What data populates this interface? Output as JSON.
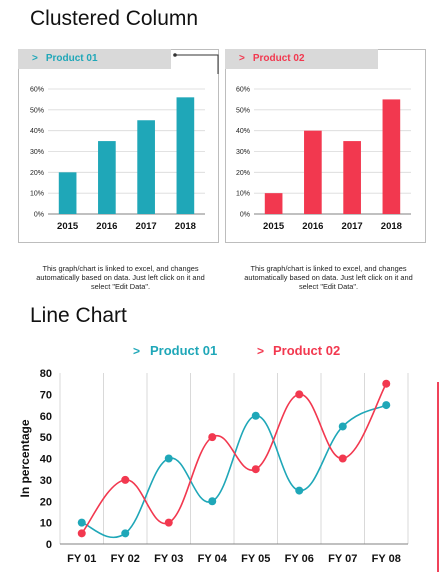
{
  "colors": {
    "product01": "#1fa7b8",
    "product02": "#f2384f",
    "grid": "#d9d9d9",
    "axis": "#808080"
  },
  "section1": {
    "title": "Clustered Column"
  },
  "section2": {
    "title": "Line Chart"
  },
  "left_panel": {
    "tab_chevron": ">",
    "tab_label": "Product 01",
    "note": "This graph/chart is linked to excel, and changes automatically based on data. Just left click on it and select \"Edit Data\"."
  },
  "right_panel": {
    "tab_chevron": ">",
    "tab_label": "Product 02",
    "note": "This graph/chart is linked to excel, and changes automatically based on data. Just left click on it and select \"Edit Data\"."
  },
  "line_legend": {
    "p1_chevron": ">",
    "p1_label": "Product 01",
    "p2_chevron": ">",
    "p2_label": "Product 02"
  },
  "chart_data": [
    {
      "type": "bar",
      "categories": [
        "2015",
        "2016",
        "2017",
        "2018"
      ],
      "values": [
        20,
        35,
        45,
        56
      ],
      "yticks": [
        "0%",
        "10%",
        "20%",
        "30%",
        "40%",
        "50%",
        "60%"
      ],
      "ylim": [
        0,
        60
      ],
      "grid": true
    },
    {
      "type": "bar",
      "categories": [
        "2015",
        "2016",
        "2017",
        "2018"
      ],
      "values": [
        10,
        40,
        35,
        55
      ],
      "yticks": [
        "0%",
        "10%",
        "20%",
        "30%",
        "40%",
        "50%",
        "60%"
      ],
      "ylim": [
        0,
        60
      ],
      "grid": true
    },
    {
      "type": "line",
      "smooth": true,
      "categories": [
        "FY 01",
        "FY 02",
        "FY 03",
        "FY 04",
        "FY 05",
        "FY 06",
        "FY 07",
        "FY 08"
      ],
      "series": [
        {
          "name": "Product 01",
          "values": [
            10,
            5,
            40,
            20,
            60,
            25,
            55,
            65
          ]
        },
        {
          "name": "Product 02",
          "values": [
            5,
            30,
            10,
            50,
            35,
            70,
            40,
            75
          ]
        }
      ],
      "ylabel": "In percentage",
      "yticks": [
        "0",
        "10",
        "20",
        "30",
        "40",
        "50",
        "60",
        "70",
        "80"
      ],
      "ylim": [
        0,
        80
      ],
      "grid": true,
      "legend": "top"
    }
  ]
}
